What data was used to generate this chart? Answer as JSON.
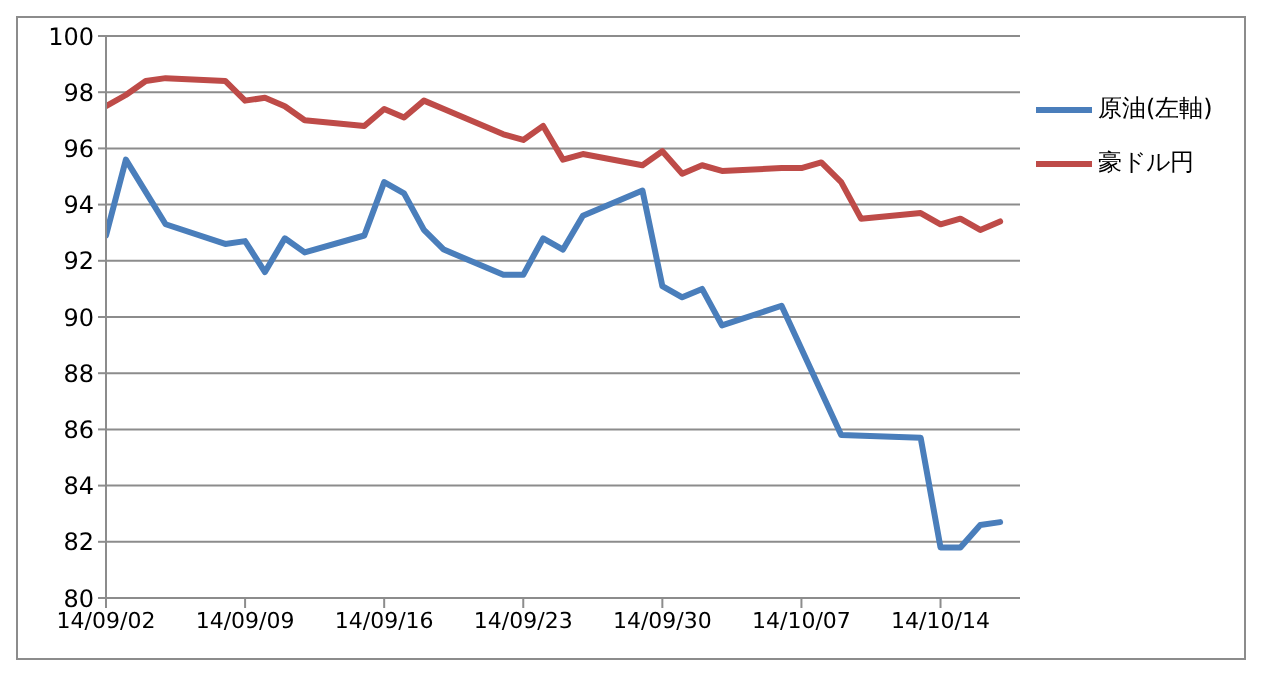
{
  "chart_data": {
    "type": "line",
    "xlim": [
      "--09-02",
      "--10-18"
    ],
    "xticks": [
      {
        "value": "--09-02",
        "label": "14/09/02"
      },
      {
        "value": "--09-09",
        "label": "14/09/09"
      },
      {
        "value": "--09-16",
        "label": "14/09/16"
      },
      {
        "value": "--09-23",
        "label": "14/09/23"
      },
      {
        "value": "--09-30",
        "label": "14/09/30"
      },
      {
        "value": "--10-07",
        "label": "14/10/07"
      },
      {
        "value": "--10-14",
        "label": "14/10/14"
      }
    ],
    "ylim": [
      80,
      100
    ],
    "yticks": [
      80,
      82,
      84,
      86,
      88,
      90,
      92,
      94,
      96,
      98,
      100
    ],
    "grid": "y",
    "legend": "top right",
    "marker": "none",
    "line_style": "solid",
    "series": [
      {
        "name": "原油(左軸)",
        "color": "#4a7ebb",
        "x": [
          "--09-02",
          "--09-03",
          "--09-05",
          "--09-08",
          "--09-09",
          "--09-10",
          "--09-11",
          "--09-12",
          "--09-15",
          "--09-16",
          "--09-17",
          "--09-18",
          "--09-19",
          "--09-22",
          "--09-23",
          "--09-24",
          "--09-25",
          "--09-26",
          "--09-29",
          "--09-30",
          "--10-01",
          "--10-02",
          "--10-03",
          "--10-06",
          "--10-09",
          "--10-13",
          "--10-14",
          "--10-15",
          "--10-16",
          "--10-17"
        ],
        "values": [
          92.9,
          95.6,
          93.3,
          92.6,
          92.7,
          91.6,
          92.8,
          92.3,
          92.9,
          94.8,
          94.4,
          93.1,
          92.4,
          91.5,
          91.5,
          92.8,
          92.4,
          93.6,
          94.5,
          91.1,
          90.7,
          91.0,
          89.7,
          90.4,
          85.8,
          85.7,
          81.8,
          81.8,
          82.6,
          82.7
        ]
      },
      {
        "name": "豪ドル円",
        "color": "#be4b48",
        "x": [
          "--09-02",
          "--09-03",
          "--09-04",
          "--09-05",
          "--09-08",
          "--09-09",
          "--09-10",
          "--09-11",
          "--09-12",
          "--09-15",
          "--09-16",
          "--09-17",
          "--09-18",
          "--09-19",
          "--09-22",
          "--09-23",
          "--09-24",
          "--09-25",
          "--09-26",
          "--09-29",
          "--09-30",
          "--10-01",
          "--10-02",
          "--10-03",
          "--10-06",
          "--10-07",
          "--10-08",
          "--10-09",
          "--10-10",
          "--10-13",
          "--10-14",
          "--10-15",
          "--10-16",
          "--10-17"
        ],
        "values": [
          97.5,
          97.9,
          98.4,
          98.5,
          98.4,
          97.7,
          97.8,
          97.5,
          97.0,
          96.8,
          97.4,
          97.1,
          97.7,
          97.4,
          96.5,
          96.3,
          96.8,
          95.6,
          95.8,
          95.4,
          95.9,
          95.1,
          95.4,
          95.2,
          95.3,
          95.3,
          95.5,
          94.8,
          93.5,
          93.7,
          93.3,
          93.5,
          93.1,
          93.4
        ]
      }
    ]
  }
}
